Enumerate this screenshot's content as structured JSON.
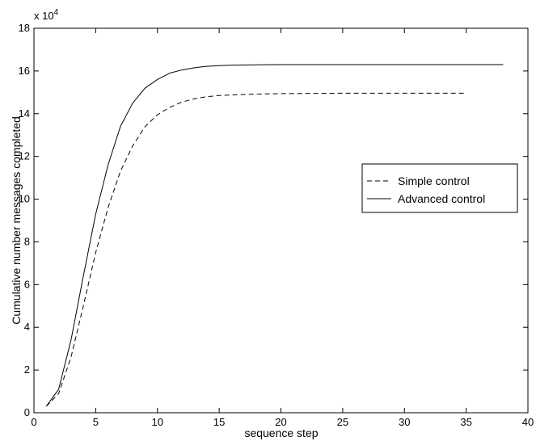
{
  "chart_data": {
    "type": "line",
    "title": "",
    "xlabel": "sequence step",
    "ylabel": "Cumulative number messages completed",
    "y_multiplier_label": "x 10",
    "y_multiplier_exponent": "4",
    "xlim": [
      0,
      40
    ],
    "ylim": [
      0,
      18
    ],
    "xticks": [
      0,
      5,
      10,
      15,
      20,
      25,
      30,
      35,
      40
    ],
    "yticks": [
      0,
      2,
      4,
      6,
      8,
      10,
      12,
      14,
      16,
      18
    ],
    "grid": false,
    "legend_position": "right",
    "series": [
      {
        "name": "Simple control",
        "line_style": "dashed",
        "color": "#000000",
        "x": [
          1,
          2,
          3,
          4,
          5,
          6,
          7,
          8,
          9,
          10,
          11,
          12,
          13,
          14,
          15,
          16,
          17,
          18,
          19,
          20,
          22,
          25,
          30,
          35
        ],
        "y": [
          0.3,
          0.9,
          2.6,
          5.0,
          7.5,
          9.6,
          11.3,
          12.5,
          13.4,
          13.95,
          14.3,
          14.55,
          14.7,
          14.8,
          14.85,
          14.88,
          14.9,
          14.92,
          14.93,
          14.94,
          14.95,
          14.96,
          14.96,
          14.96
        ]
      },
      {
        "name": "Advanced control",
        "line_style": "solid",
        "color": "#000000",
        "x": [
          1,
          2,
          3,
          4,
          5,
          6,
          7,
          8,
          9,
          10,
          11,
          12,
          13,
          14,
          15,
          16,
          17,
          18,
          20,
          25,
          30,
          38
        ],
        "y": [
          0.3,
          1.1,
          3.4,
          6.4,
          9.3,
          11.6,
          13.4,
          14.5,
          15.2,
          15.6,
          15.9,
          16.05,
          16.15,
          16.22,
          16.25,
          16.27,
          16.28,
          16.29,
          16.3,
          16.3,
          16.3,
          16.3
        ]
      }
    ]
  }
}
